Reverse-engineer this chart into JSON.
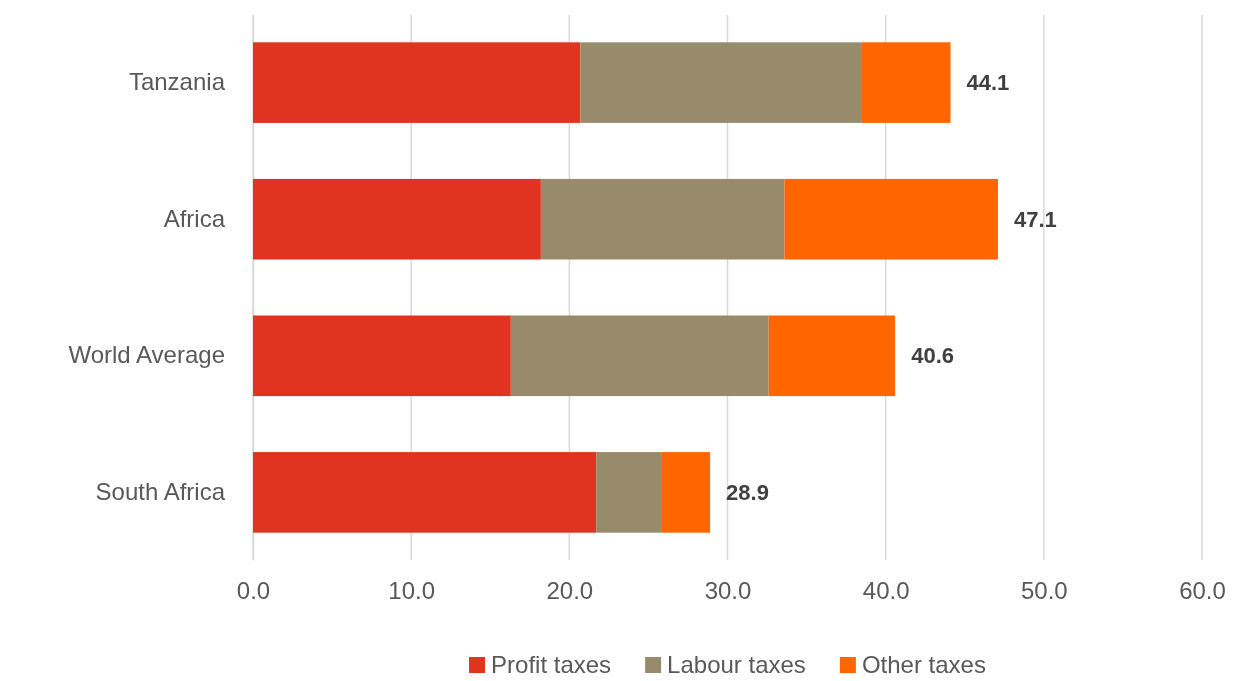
{
  "chart_data": {
    "type": "bar",
    "orientation": "horizontal",
    "stacked": true,
    "categories": [
      "Tanzania",
      "Africa",
      "World Average",
      "South Africa"
    ],
    "series": [
      {
        "name": "Profit taxes",
        "color": "#e03320",
        "values": [
          20.7,
          18.2,
          16.3,
          21.7
        ]
      },
      {
        "name": "Labour taxes",
        "color": "#978b6b",
        "values": [
          17.8,
          15.4,
          16.3,
          4.1
        ]
      },
      {
        "name": "Other taxes",
        "color": "#ff6600",
        "values": [
          5.6,
          13.5,
          8.0,
          3.1
        ]
      }
    ],
    "totals": [
      "44.1",
      "47.1",
      "40.6",
      "28.9"
    ],
    "xlim": [
      0,
      60
    ],
    "xticks": [
      {
        "value": 0,
        "label": "0.0"
      },
      {
        "value": 10,
        "label": "10.0"
      },
      {
        "value": 20,
        "label": "20.0"
      },
      {
        "value": 30,
        "label": "30.0"
      },
      {
        "value": 40,
        "label": "40.0"
      },
      {
        "value": 50,
        "label": "50.0"
      },
      {
        "value": 60,
        "label": "60.0"
      }
    ],
    "grid": "x",
    "legend": "bottom"
  }
}
